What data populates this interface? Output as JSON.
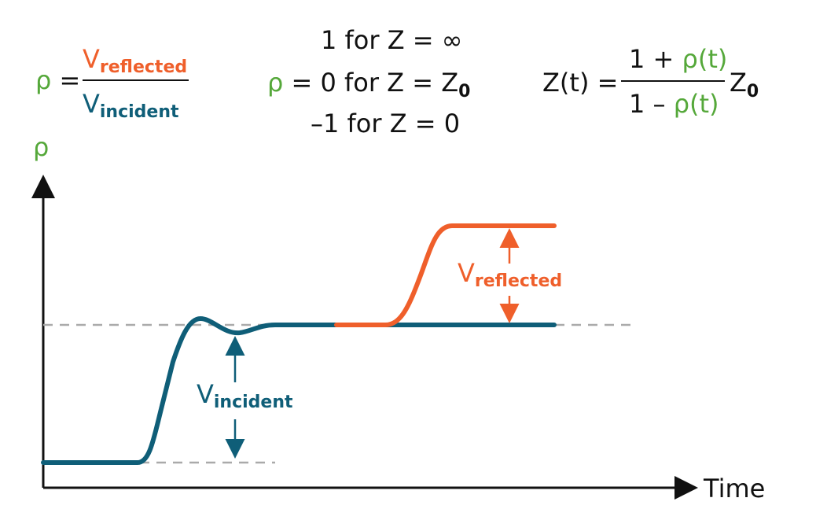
{
  "formula_rho": {
    "lhs": "ρ",
    "eq": "=",
    "num_main": "V",
    "num_sub": "reflected",
    "den_main": "V",
    "den_sub": "incident"
  },
  "cases": {
    "line1": "1 for Z = ∞",
    "line2_rho": "ρ",
    "line2": "= 0 for Z = Z",
    "line2_sub": "0",
    "line3": "–1 for Z = 0"
  },
  "impedance": {
    "lhs": "Z(t) =",
    "num_prefix": "1 +",
    "num_rho": "ρ(t)",
    "den_prefix": "1 –",
    "den_rho": "ρ(t)",
    "z": "Z",
    "z_sub": "0"
  },
  "axes": {
    "y_label": "ρ",
    "x_label": "Time"
  },
  "annotations": {
    "reflected_main": "V",
    "reflected_sub": "reflected",
    "incident_main": "V",
    "incident_sub": "incident"
  }
}
